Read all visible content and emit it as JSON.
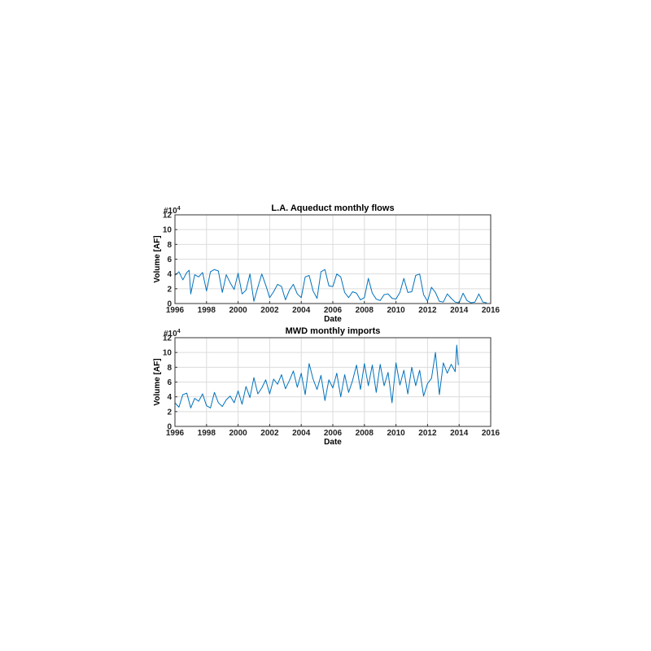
{
  "chart_data": [
    {
      "type": "line",
      "title": "L.A. Aqueduct monthly flows",
      "xlabel": "Date",
      "ylabel": "Volume [AF]",
      "exponent_label": "#10",
      "exponent_power": "4",
      "xlim": [
        1996,
        2016
      ],
      "ylim": [
        0,
        12
      ],
      "x_ticks": [
        "1996",
        "1998",
        "2000",
        "2002",
        "2004",
        "2006",
        "2008",
        "2010",
        "2012",
        "2014",
        "2016"
      ],
      "y_ticks": [
        "0",
        "2",
        "4",
        "6",
        "8",
        "10",
        "12"
      ],
      "grid": true,
      "series": [
        {
          "color": "#0072bd",
          "x": [
            1996.0,
            1996.25,
            1996.5,
            1996.75,
            1996.9,
            1997.0,
            1997.25,
            1997.5,
            1997.75,
            1998.0,
            1998.25,
            1998.5,
            1998.75,
            1999.0,
            1999.25,
            1999.5,
            1999.75,
            2000.0,
            2000.25,
            2000.5,
            2000.75,
            2001.0,
            2001.25,
            2001.5,
            2001.75,
            2002.0,
            2002.25,
            2002.5,
            2002.75,
            2003.0,
            2003.25,
            2003.5,
            2003.75,
            2004.0,
            2004.25,
            2004.5,
            2004.75,
            2005.0,
            2005.25,
            2005.5,
            2005.75,
            2006.0,
            2006.25,
            2006.5,
            2006.75,
            2007.0,
            2007.25,
            2007.5,
            2007.75,
            2008.0,
            2008.25,
            2008.5,
            2008.75,
            2009.0,
            2009.25,
            2009.5,
            2009.75,
            2010.0,
            2010.25,
            2010.5,
            2010.75,
            2011.0,
            2011.25,
            2011.5,
            2011.75,
            2012.0,
            2012.25,
            2012.5,
            2012.75,
            2013.0,
            2013.25,
            2013.5,
            2013.75,
            2014.0,
            2014.25,
            2014.5,
            2014.75,
            2015.0,
            2015.25,
            2015.5,
            2015.75
          ],
          "y": [
            3.8,
            4.3,
            3.2,
            4.2,
            4.5,
            1.3,
            3.9,
            3.6,
            4.2,
            1.7,
            4.3,
            4.6,
            4.4,
            1.5,
            3.9,
            2.8,
            1.9,
            4.1,
            1.3,
            1.8,
            4.0,
            0.3,
            2.2,
            4.0,
            2.5,
            0.8,
            1.6,
            2.6,
            2.3,
            0.5,
            1.8,
            2.6,
            1.3,
            0.8,
            3.6,
            3.8,
            1.7,
            0.7,
            4.3,
            4.6,
            2.4,
            2.3,
            4.0,
            3.6,
            1.5,
            0.8,
            1.6,
            1.4,
            0.5,
            0.8,
            3.4,
            1.4,
            0.6,
            0.4,
            1.2,
            1.3,
            0.7,
            0.6,
            1.5,
            3.4,
            1.5,
            1.6,
            3.8,
            4.0,
            1.2,
            0.3,
            2.2,
            1.5,
            0.3,
            0.2,
            1.3,
            0.7,
            0.2,
            0.1,
            1.4,
            0.4,
            0.1,
            0.2,
            1.3,
            0.2,
            0.1
          ]
        }
      ]
    },
    {
      "type": "line",
      "title": "MWD monthly imports",
      "xlabel": "Date",
      "ylabel": "Volume [AF]",
      "exponent_label": "#10",
      "exponent_power": "4",
      "xlim": [
        1996,
        2016
      ],
      "ylim": [
        0,
        12
      ],
      "x_ticks": [
        "1996",
        "1998",
        "2000",
        "2002",
        "2004",
        "2006",
        "2008",
        "2010",
        "2012",
        "2014",
        "2016"
      ],
      "y_ticks": [
        "0",
        "2",
        "4",
        "6",
        "8",
        "10",
        "12"
      ],
      "grid": true,
      "series": [
        {
          "color": "#0072bd",
          "x": [
            1996.0,
            1996.25,
            1996.5,
            1996.75,
            1997.0,
            1997.25,
            1997.5,
            1997.75,
            1998.0,
            1998.25,
            1998.5,
            1998.75,
            1999.0,
            1999.25,
            1999.5,
            1999.75,
            2000.0,
            2000.25,
            2000.5,
            2000.75,
            2001.0,
            2001.25,
            2001.5,
            2001.75,
            2002.0,
            2002.25,
            2002.5,
            2002.75,
            2003.0,
            2003.25,
            2003.5,
            2003.75,
            2004.0,
            2004.25,
            2004.5,
            2004.75,
            2005.0,
            2005.25,
            2005.5,
            2005.75,
            2006.0,
            2006.25,
            2006.5,
            2006.75,
            2007.0,
            2007.25,
            2007.5,
            2007.75,
            2008.0,
            2008.25,
            2008.5,
            2008.75,
            2009.0,
            2009.25,
            2009.5,
            2009.75,
            2010.0,
            2010.25,
            2010.5,
            2010.75,
            2011.0,
            2011.25,
            2011.5,
            2011.75,
            2012.0,
            2012.25,
            2012.5,
            2012.75,
            2013.0,
            2013.25,
            2013.5,
            2013.75,
            2013.85,
            2013.95
          ],
          "y": [
            3.2,
            2.6,
            4.3,
            4.5,
            2.5,
            3.8,
            3.4,
            4.4,
            2.8,
            2.5,
            4.6,
            3.2,
            2.7,
            3.6,
            4.1,
            3.2,
            4.8,
            3.0,
            5.4,
            3.9,
            6.6,
            4.4,
            5.2,
            6.3,
            4.4,
            6.4,
            5.7,
            7.0,
            5.1,
            6.2,
            7.5,
            5.3,
            7.2,
            4.3,
            8.5,
            6.4,
            5.0,
            6.9,
            3.5,
            6.3,
            5.2,
            7.2,
            4.0,
            7.0,
            4.6,
            6.2,
            8.3,
            5.0,
            8.5,
            5.5,
            8.3,
            4.6,
            8.4,
            5.5,
            7.3,
            3.2,
            8.6,
            5.6,
            7.6,
            4.4,
            8.0,
            5.5,
            7.6,
            4.1,
            5.8,
            6.5,
            10.0,
            4.3,
            8.6,
            7.2,
            8.4,
            7.4,
            11.0,
            8.3
          ]
        }
      ]
    }
  ]
}
